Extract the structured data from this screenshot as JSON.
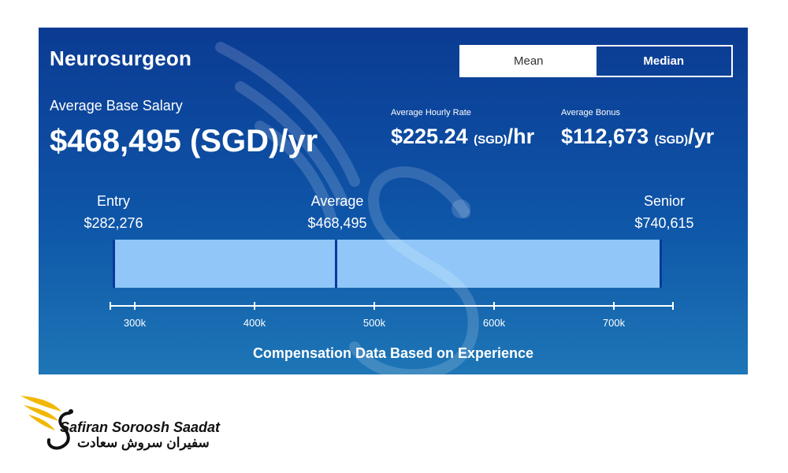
{
  "job": {
    "title": "Neurosurgeon"
  },
  "toggle": {
    "mean_label": "Mean",
    "median_label": "Median",
    "selected": "Mean"
  },
  "base": {
    "label": "Average Base Salary",
    "value": "$468,495 (SGD)/yr"
  },
  "hourly": {
    "label": "Average Hourly Rate",
    "amount": "$225.24",
    "currency": "(SGD)",
    "unit": "/hr"
  },
  "bonus": {
    "label": "Average Bonus",
    "amount": "$112,673",
    "currency": "(SGD)",
    "unit": "/yr"
  },
  "range": {
    "entry": {
      "label": "Entry",
      "value": "$282,276"
    },
    "average": {
      "label": "Average",
      "value": "$468,495"
    },
    "senior": {
      "label": "Senior",
      "value": "$740,615"
    }
  },
  "axis": {
    "ticks": [
      "300k",
      "400k",
      "500k",
      "600k",
      "700k"
    ]
  },
  "footer": {
    "text": "Compensation Data Based on Experience"
  },
  "logo": {
    "name_en": "Safiran Soroosh Saadat",
    "name_fa": "سفیران سروش سعادت"
  },
  "colors": {
    "card_top": "#0b3b93",
    "card_bottom": "#1e76b6",
    "bar_fill": "#90c7f8",
    "bar_edge": "#0a3a9a",
    "logo_gold": "#f2b705"
  }
}
